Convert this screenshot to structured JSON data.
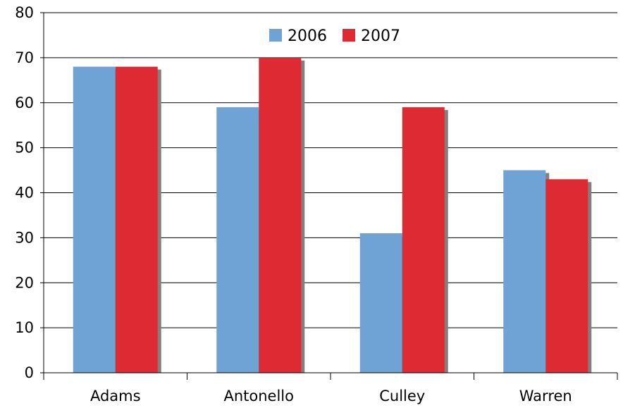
{
  "chart_data": {
    "type": "bar",
    "categories": [
      "Adams",
      "Antonello",
      "Culley",
      "Warren"
    ],
    "series": [
      {
        "name": "2006",
        "values": [
          68,
          59,
          31,
          45
        ],
        "color": "#6FA3D6"
      },
      {
        "name": "2007",
        "values": [
          68,
          70,
          59,
          43
        ],
        "color": "#DE2A32"
      }
    ],
    "title": "",
    "xlabel": "",
    "ylabel": "",
    "ylim": [
      0,
      80
    ],
    "yticks": [
      "0",
      "10",
      "20",
      "30",
      "40",
      "50",
      "60",
      "70",
      "80"
    ],
    "grid": true,
    "legend_position": "top-center"
  }
}
